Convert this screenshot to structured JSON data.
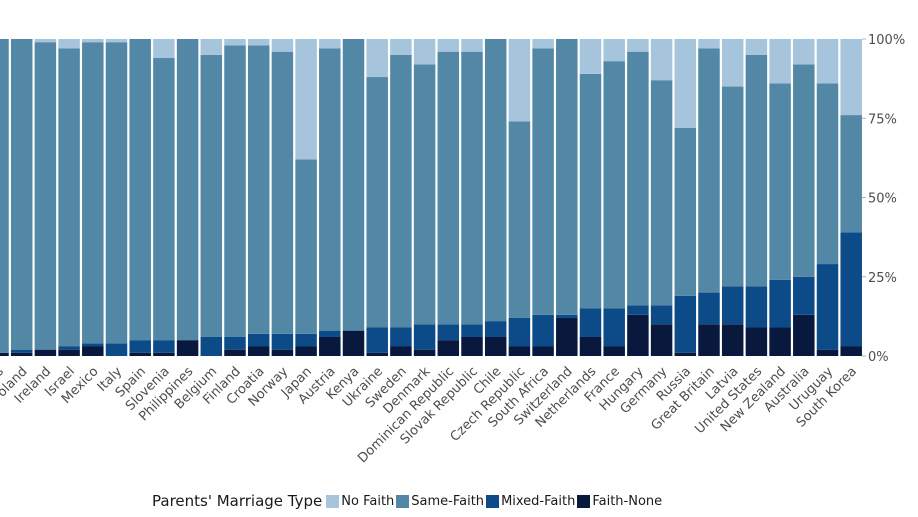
{
  "chart_data": {
    "type": "bar",
    "stacked": true,
    "orientation": "vertical",
    "legend": {
      "title": "Parents' Marriage Type",
      "position": "bottom"
    },
    "categories": [
      "...s",
      "Poland",
      "Ireland",
      "Israel",
      "Mexico",
      "Italy",
      "Spain",
      "Slovenia",
      "Philippines",
      "Belgium",
      "Finland",
      "Croatia",
      "Norway",
      "Japan",
      "Austria",
      "Kenya",
      "Ukraine",
      "Sweden",
      "Denmark",
      "Dominican Republic",
      "Slovak Republic",
      "Chile",
      "Czech Republic",
      "South Africa",
      "Switzerland",
      "Netherlands",
      "France",
      "Hungary",
      "Germany",
      "Russia",
      "Great Britain",
      "Latvia",
      "United States",
      "New Zealand",
      "Australia",
      "Uruguay",
      "South Korea"
    ],
    "y_axis": {
      "ylim": [
        0,
        100
      ],
      "ticks": [
        "0%",
        "25%",
        "50%",
        "75%",
        "100%"
      ],
      "position": "right"
    },
    "series": [
      {
        "name": "Faith-None",
        "color": "#08193d",
        "values": [
          1,
          1,
          2,
          2,
          3,
          0,
          1,
          1,
          5,
          0,
          2,
          3,
          2,
          3,
          6,
          8,
          1,
          3,
          2,
          5,
          6,
          6,
          3,
          3,
          12,
          6,
          3,
          13,
          10,
          1,
          10,
          10,
          9,
          9,
          13,
          2,
          3
        ]
      },
      {
        "name": "Mixed-Faith",
        "color": "#0c4a88",
        "values": [
          0,
          1,
          0,
          1,
          1,
          4,
          4,
          4,
          0,
          6,
          4,
          4,
          5,
          4,
          2,
          0,
          8,
          6,
          8,
          5,
          4,
          5,
          9,
          10,
          1,
          9,
          12,
          3,
          6,
          18,
          10,
          12,
          13,
          15,
          12,
          27,
          36
        ]
      },
      {
        "name": "Same-Faith",
        "color": "#5387a6",
        "values": [
          99,
          98,
          97,
          94,
          95,
          95,
          95,
          89,
          95,
          89,
          92,
          91,
          89,
          55,
          89,
          92,
          79,
          86,
          82,
          86,
          86,
          89,
          62,
          84,
          87,
          74,
          78,
          80,
          71,
          53,
          77,
          63,
          73,
          62,
          67,
          57,
          37
        ]
      },
      {
        "name": "No Faith",
        "color": "#a6c5dd",
        "values": [
          0,
          0,
          1,
          3,
          1,
          1,
          0,
          6,
          0,
          5,
          2,
          2,
          4,
          38,
          3,
          0,
          12,
          5,
          8,
          4,
          4,
          0,
          26,
          3,
          0,
          11,
          7,
          4,
          13,
          28,
          3,
          15,
          5,
          14,
          8,
          14,
          24
        ]
      }
    ]
  }
}
